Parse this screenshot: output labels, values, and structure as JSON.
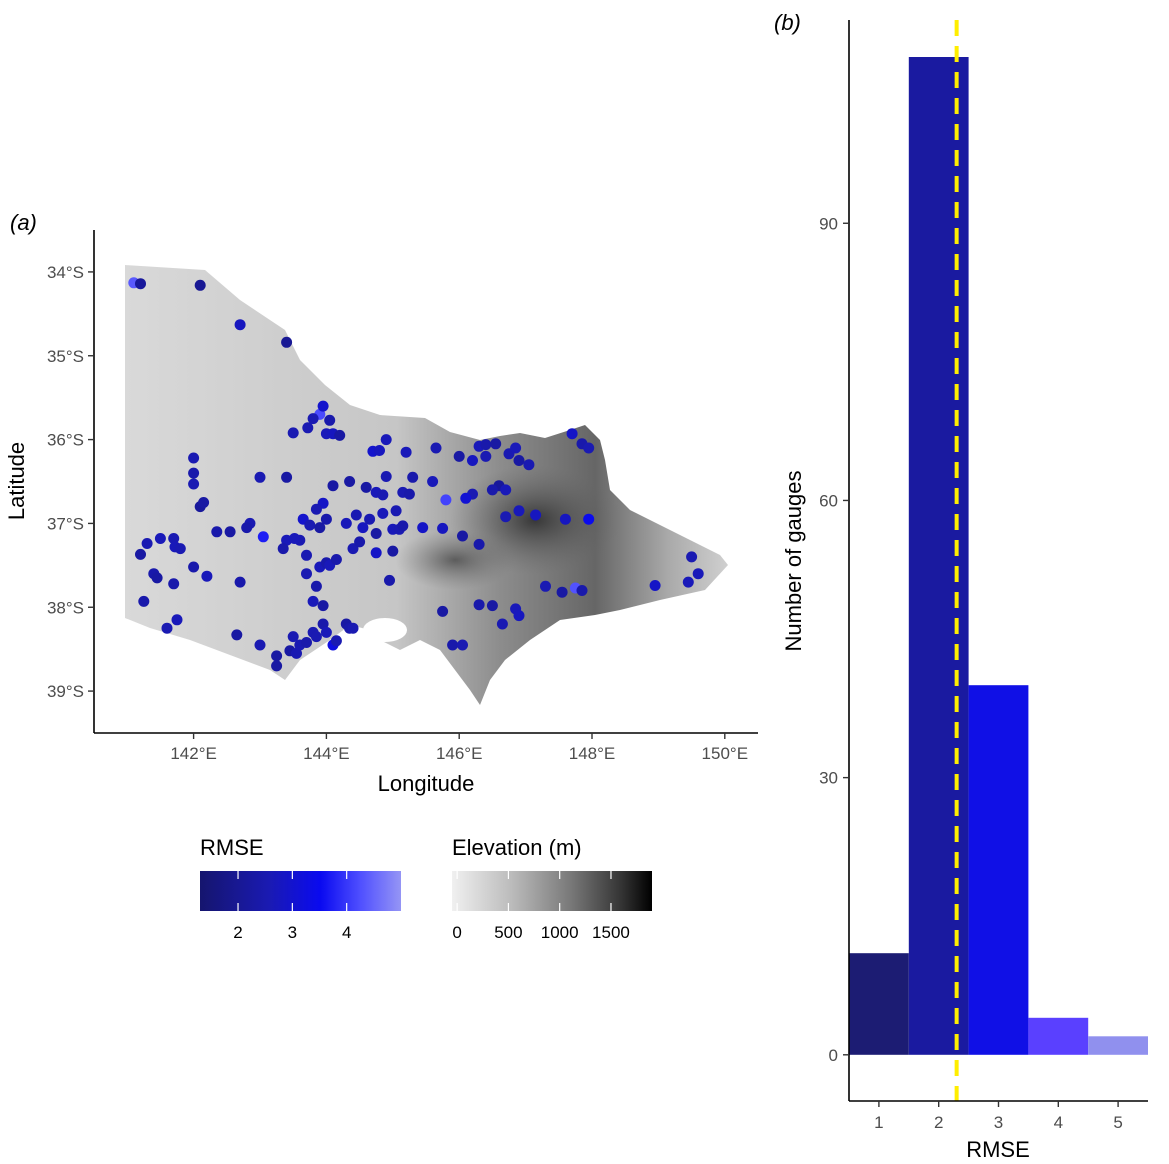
{
  "panels": {
    "a": "(a)",
    "b": "(b)"
  },
  "chart_data": [
    {
      "type": "scatter",
      "panel": "(a)",
      "xlabel": "Longitude",
      "ylabel": "Latitude",
      "xlim": [
        140.5,
        150.5
      ],
      "ylim": [
        -39.5,
        -33.5
      ],
      "x_ticks": [
        {
          "v": 142,
          "label": "142°E"
        },
        {
          "v": 144,
          "label": "144°E"
        },
        {
          "v": 146,
          "label": "146°E"
        },
        {
          "v": 148,
          "label": "148°E"
        },
        {
          "v": 150,
          "label": "150°E"
        }
      ],
      "y_ticks": [
        {
          "v": -34,
          "label": "34°S"
        },
        {
          "v": -35,
          "label": "35°S"
        },
        {
          "v": -36,
          "label": "36°S"
        },
        {
          "v": -37,
          "label": "37°S"
        },
        {
          "v": -38,
          "label": "38°S"
        },
        {
          "v": -39,
          "label": "39°S"
        }
      ],
      "background": "Victoria elevation raster (grey scale, 0–1900 m)",
      "points": [
        [
          141.1,
          -34.13,
          4.2
        ],
        [
          141.2,
          -34.14,
          1.9
        ],
        [
          142.1,
          -34.16,
          1.8
        ],
        [
          142.7,
          -34.63,
          2.4
        ],
        [
          143.4,
          -34.84,
          1.8
        ],
        [
          143.9,
          -35.7,
          4.0
        ],
        [
          143.8,
          -35.75,
          2.2
        ],
        [
          144.05,
          -35.77,
          2.1
        ],
        [
          143.95,
          -35.6,
          2.6
        ],
        [
          143.5,
          -35.92,
          2.2
        ],
        [
          143.72,
          -35.86,
          2.2
        ],
        [
          144.0,
          -35.93,
          2.3
        ],
        [
          144.1,
          -35.93,
          2.4
        ],
        [
          144.2,
          -35.95,
          2.0
        ],
        [
          144.9,
          -36.0,
          2.3
        ],
        [
          144.7,
          -36.14,
          2.6
        ],
        [
          144.8,
          -36.13,
          2.4
        ],
        [
          145.2,
          -36.15,
          2.3
        ],
        [
          145.65,
          -36.1,
          2.2
        ],
        [
          146.0,
          -36.2,
          2.0
        ],
        [
          146.3,
          -36.08,
          2.3
        ],
        [
          146.4,
          -36.06,
          2.1
        ],
        [
          146.55,
          -36.05,
          2.0
        ],
        [
          146.2,
          -36.25,
          2.4
        ],
        [
          146.4,
          -36.2,
          2.2
        ],
        [
          146.75,
          -36.17,
          2.2
        ],
        [
          146.85,
          -36.1,
          2.3
        ],
        [
          147.7,
          -35.93,
          2.5
        ],
        [
          147.85,
          -36.05,
          2.1
        ],
        [
          147.95,
          -36.1,
          2.2
        ],
        [
          146.9,
          -36.25,
          2.0
        ],
        [
          147.05,
          -36.3,
          2.2
        ],
        [
          146.6,
          -36.55,
          1.9
        ],
        [
          146.5,
          -36.6,
          2.1
        ],
        [
          146.2,
          -36.65,
          2.2
        ],
        [
          146.1,
          -36.7,
          2.7
        ],
        [
          145.8,
          -36.72,
          3.9
        ],
        [
          145.6,
          -36.5,
          2.3
        ],
        [
          145.3,
          -36.45,
          2.1
        ],
        [
          144.9,
          -36.44,
          2.2
        ],
        [
          144.6,
          -36.57,
          2.0
        ],
        [
          144.75,
          -36.63,
          2.3
        ],
        [
          144.85,
          -36.66,
          2.2
        ],
        [
          145.15,
          -36.63,
          2.2
        ],
        [
          145.25,
          -36.65,
          2.1
        ],
        [
          145.05,
          -36.85,
          2.2
        ],
        [
          144.85,
          -36.88,
          2.3
        ],
        [
          144.35,
          -36.5,
          2.0
        ],
        [
          144.1,
          -36.55,
          2.0
        ],
        [
          143.95,
          -36.76,
          2.5
        ],
        [
          143.85,
          -36.83,
          2.2
        ],
        [
          143.65,
          -36.95,
          2.6
        ],
        [
          143.75,
          -37.02,
          2.2
        ],
        [
          143.9,
          -37.05,
          2.0
        ],
        [
          144.0,
          -36.95,
          2.1
        ],
        [
          144.3,
          -37.0,
          2.3
        ],
        [
          144.45,
          -36.9,
          2.2
        ],
        [
          144.55,
          -37.05,
          2.4
        ],
        [
          144.65,
          -36.95,
          2.2
        ],
        [
          144.75,
          -37.12,
          2.0
        ],
        [
          145.0,
          -37.07,
          2.3
        ],
        [
          145.1,
          -37.07,
          2.2
        ],
        [
          145.15,
          -37.03,
          2.1
        ],
        [
          145.45,
          -37.05,
          2.5
        ],
        [
          145.75,
          -37.06,
          2.4
        ],
        [
          146.05,
          -37.15,
          2.0
        ],
        [
          146.3,
          -37.25,
          2.1
        ],
        [
          146.7,
          -36.6,
          2.3
        ],
        [
          146.7,
          -36.92,
          2.2
        ],
        [
          146.9,
          -36.85,
          2.3
        ],
        [
          147.15,
          -36.9,
          2.4
        ],
        [
          147.6,
          -36.95,
          2.4
        ],
        [
          147.95,
          -36.95,
          3.1
        ],
        [
          148.95,
          -37.74,
          2.5
        ],
        [
          149.5,
          -37.4,
          2.2
        ],
        [
          149.6,
          -37.6,
          2.3
        ],
        [
          149.45,
          -37.7,
          2.3
        ],
        [
          142.0,
          -36.22,
          2.2
        ],
        [
          142.0,
          -36.4,
          2.1
        ],
        [
          142.0,
          -36.53,
          2.2
        ],
        [
          142.1,
          -36.8,
          1.9
        ],
        [
          142.15,
          -36.75,
          2.0
        ],
        [
          141.3,
          -37.24,
          2.2
        ],
        [
          141.5,
          -37.18,
          2.3
        ],
        [
          141.2,
          -37.37,
          2.0
        ],
        [
          141.4,
          -37.6,
          2.1
        ],
        [
          141.45,
          -37.65,
          2.0
        ],
        [
          141.7,
          -37.18,
          2.2
        ],
        [
          141.72,
          -37.28,
          2.3
        ],
        [
          141.8,
          -37.3,
          2.2
        ],
        [
          142.0,
          -37.52,
          2.1
        ],
        [
          141.7,
          -37.72,
          2.1
        ],
        [
          142.2,
          -37.63,
          2.3
        ],
        [
          141.25,
          -37.93,
          2.1
        ],
        [
          141.6,
          -38.25,
          2.2
        ],
        [
          141.75,
          -38.15,
          2.3
        ],
        [
          142.35,
          -37.1,
          2.1
        ],
        [
          142.55,
          -37.1,
          2.0
        ],
        [
          142.85,
          -37.0,
          2.2
        ],
        [
          142.8,
          -37.05,
          2.1
        ],
        [
          143.05,
          -37.16,
          3.4
        ],
        [
          142.7,
          -37.7,
          2.1
        ],
        [
          142.65,
          -38.33,
          2.0
        ],
        [
          143.0,
          -38.45,
          2.2
        ],
        [
          143.25,
          -38.58,
          2.0
        ],
        [
          143.25,
          -38.7,
          2.0
        ],
        [
          143.45,
          -38.52,
          2.0
        ],
        [
          143.55,
          -38.55,
          2.2
        ],
        [
          143.5,
          -38.35,
          2.2
        ],
        [
          143.6,
          -38.45,
          2.2
        ],
        [
          143.7,
          -38.42,
          2.1
        ],
        [
          143.8,
          -38.3,
          2.2
        ],
        [
          143.85,
          -38.35,
          2.2
        ],
        [
          143.95,
          -38.2,
          2.1
        ],
        [
          144.0,
          -38.3,
          2.3
        ],
        [
          144.1,
          -38.45,
          2.9
        ],
        [
          144.15,
          -38.4,
          2.2
        ],
        [
          144.3,
          -38.2,
          2.0
        ],
        [
          144.35,
          -38.25,
          2.1
        ],
        [
          144.4,
          -38.25,
          2.2
        ],
        [
          143.8,
          -37.93,
          2.3
        ],
        [
          143.95,
          -37.98,
          2.0
        ],
        [
          143.85,
          -37.75,
          2.1
        ],
        [
          143.7,
          -37.6,
          2.2
        ],
        [
          143.6,
          -37.2,
          2.2
        ],
        [
          143.4,
          -37.2,
          2.3
        ],
        [
          143.52,
          -37.18,
          2.3
        ],
        [
          143.35,
          -37.3,
          2.1
        ],
        [
          143.7,
          -37.38,
          2.2
        ],
        [
          143.9,
          -37.52,
          2.3
        ],
        [
          144.0,
          -37.47,
          2.1
        ],
        [
          144.05,
          -37.5,
          2.3
        ],
        [
          144.15,
          -37.43,
          2.1
        ],
        [
          144.4,
          -37.3,
          2.2
        ],
        [
          144.5,
          -37.22,
          2.1
        ],
        [
          144.75,
          -37.35,
          2.5
        ],
        [
          145.0,
          -37.33,
          2.0
        ],
        [
          144.95,
          -37.68,
          2.1
        ],
        [
          143.0,
          -36.45,
          2.2
        ],
        [
          143.4,
          -36.45,
          2.0
        ],
        [
          145.75,
          -38.05,
          2.0
        ],
        [
          145.9,
          -38.45,
          2.1
        ],
        [
          146.05,
          -38.45,
          2.2
        ],
        [
          146.3,
          -37.97,
          2.1
        ],
        [
          146.5,
          -37.98,
          2.0
        ],
        [
          146.65,
          -38.2,
          2.2
        ],
        [
          146.85,
          -38.02,
          2.3
        ],
        [
          146.9,
          -38.1,
          2.4
        ],
        [
          147.3,
          -37.75,
          2.2
        ],
        [
          147.55,
          -37.82,
          2.0
        ],
        [
          147.75,
          -37.77,
          4.1
        ],
        [
          147.85,
          -37.8,
          2.1
        ]
      ]
    },
    {
      "type": "bar",
      "panel": "(b)",
      "xlabel": "RMSE",
      "ylabel": "Number of gauges",
      "categories": [
        "1",
        "2",
        "3",
        "4",
        "5"
      ],
      "values": [
        11,
        108,
        40,
        4,
        2
      ],
      "bar_colors": [
        "#1c1c73",
        "#1a1aa0",
        "#1010e6",
        "#5a40ff",
        "#9090ee"
      ],
      "xlim": [
        0.5,
        5.5
      ],
      "ylim": [
        -5,
        112
      ],
      "y_ticks": [
        0,
        30,
        60,
        90
      ],
      "reference_line": {
        "x": 2.3,
        "color": "#ffee00",
        "style": "dashed"
      }
    }
  ],
  "legends": {
    "rmse": {
      "title": "RMSE",
      "ticks": [
        "2",
        "3",
        "4"
      ],
      "tick_values": [
        2,
        3,
        4
      ],
      "range": [
        1.3,
        5.0
      ],
      "colors": [
        "#15156e",
        "#1a1ab4",
        "#0a0af0",
        "#5050ff",
        "#9595f5"
      ]
    },
    "elevation": {
      "title": "Elevation (m)",
      "ticks": [
        "0",
        "500",
        "1000",
        "1500"
      ],
      "tick_values": [
        0,
        500,
        1000,
        1500
      ],
      "range": [
        -50,
        1900
      ],
      "colors": [
        "#f0f0f0",
        "#bbbbbb",
        "#777777",
        "#333333",
        "#000000"
      ]
    }
  }
}
